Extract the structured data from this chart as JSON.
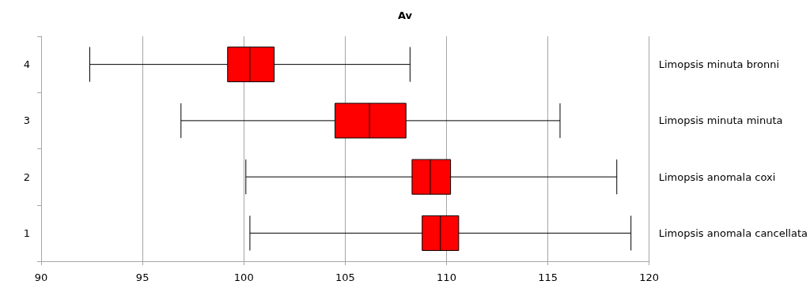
{
  "chart_data": {
    "type": "box",
    "title": "Av",
    "orientation": "horizontal",
    "categories": [
      "4",
      "3",
      "2",
      "1"
    ],
    "y2_categories": [
      "Limopsis minuta bronni",
      "Limopsis minuta minuta",
      "Limopsis anomala coxi",
      "Limopsis anomala cancellata"
    ],
    "series": [
      {
        "color": "#ff0000",
        "boxes": [
          {
            "low": 92.4,
            "q1": 99.2,
            "median": 100.3,
            "q3": 101.5,
            "high": 108.2
          },
          {
            "low": 96.9,
            "q1": 104.5,
            "median": 106.2,
            "q3": 108.0,
            "high": 115.6
          },
          {
            "low": 100.1,
            "q1": 108.3,
            "median": 109.2,
            "q3": 110.2,
            "high": 118.4
          },
          {
            "low": 100.3,
            "q1": 108.8,
            "median": 109.7,
            "q3": 110.6,
            "high": 119.1
          }
        ]
      }
    ],
    "xlim": [
      90,
      120
    ],
    "xticks": [
      90,
      95,
      100,
      105,
      110,
      115,
      120
    ],
    "grid": "x"
  }
}
